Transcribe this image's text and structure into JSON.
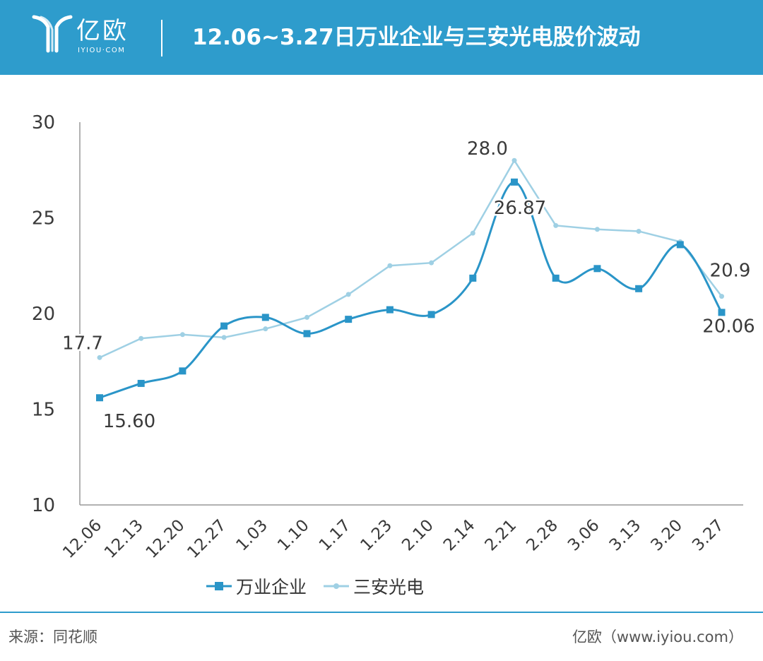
{
  "header": {
    "logo_cn": "亿欧",
    "logo_en": "IYIOU·COM",
    "title": "12.06~3.27日万业企业与三安光电股价波动"
  },
  "colors": {
    "header_bg": "#2e9ccc",
    "series_1": "#2a95c8",
    "series_2": "#9fd0e4",
    "axis": "#999999"
  },
  "chart_data": {
    "type": "line",
    "categories": [
      "12.06",
      "12.13",
      "12.20",
      "12.27",
      "1.03",
      "1.10",
      "1.17",
      "1.23",
      "2.10",
      "2.14",
      "2.21",
      "2.28",
      "3.06",
      "3.13",
      "3.20",
      "3.27"
    ],
    "ylim": [
      10,
      30
    ],
    "yticks": [
      10,
      15,
      20,
      25,
      30
    ],
    "grid": false,
    "legend_position": "bottom",
    "series": [
      {
        "name": "万业企业",
        "marker": "square",
        "smooth": true,
        "values": [
          15.6,
          16.35,
          17.0,
          19.35,
          19.8,
          18.95,
          19.7,
          20.2,
          19.95,
          21.85,
          26.87,
          21.85,
          22.35,
          21.3,
          23.6,
          20.06
        ],
        "point_labels": [
          {
            "index": 0,
            "text": "15.60"
          },
          {
            "index": 10,
            "text": "26.87"
          },
          {
            "index": 15,
            "text": "20.06"
          }
        ]
      },
      {
        "name": "三安光电",
        "marker": "circle",
        "smooth": false,
        "values": [
          17.7,
          18.7,
          18.9,
          18.75,
          19.2,
          19.8,
          21.0,
          22.5,
          22.65,
          24.2,
          28.0,
          24.6,
          24.4,
          24.3,
          23.75,
          20.9
        ],
        "point_labels": [
          {
            "index": 0,
            "text": "17.7"
          },
          {
            "index": 10,
            "text": "28.0"
          },
          {
            "index": 15,
            "text": "20.9"
          }
        ]
      }
    ]
  },
  "footer": {
    "source": "来源：同花顺",
    "credit": "亿欧（www.iyiou.com）"
  }
}
